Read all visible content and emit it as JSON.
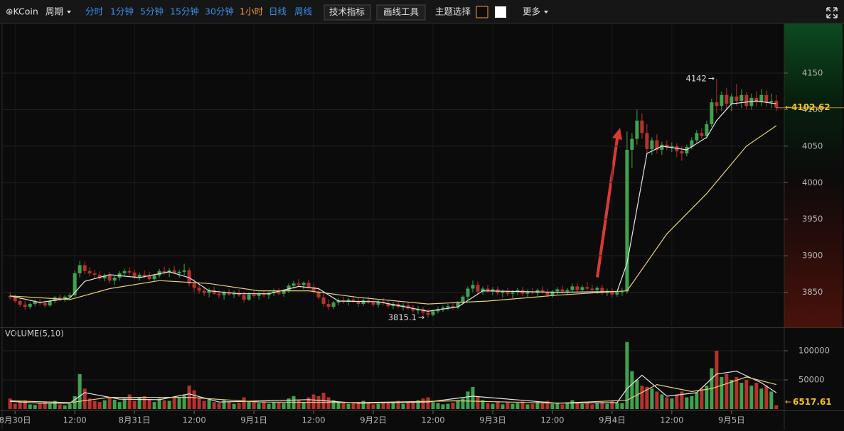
{
  "toolbar": {
    "logo": "⊛KCoin",
    "period": "周期",
    "intervals": [
      "分时",
      "1分钟",
      "5分钟",
      "15分钟",
      "30分钟",
      "1小时",
      "日线",
      "周线"
    ],
    "active_interval": 5,
    "buttons": [
      "技术指标",
      "画线工具"
    ],
    "theme": "主题选择",
    "more": "更多"
  },
  "chart_data": {
    "type": "candlestick",
    "xlim": [
      -1.6,
      155.6
    ],
    "ylim": [
      3802,
      4218
    ],
    "yticks": [
      3850,
      3900,
      3950,
      4000,
      4050,
      4100,
      4150
    ],
    "grid": true,
    "colors": {
      "up": "#3fa34d",
      "down": "#b7322c"
    },
    "xticks": [
      {
        "value": 1,
        "label": "8月30日"
      },
      {
        "value": 13,
        "label": "12:00"
      },
      {
        "value": 25,
        "label": "8月31日"
      },
      {
        "value": 37,
        "label": "12:00"
      },
      {
        "value": 49,
        "label": "9月1日"
      },
      {
        "value": 61,
        "label": "12:00"
      },
      {
        "value": 73,
        "label": "9月2日"
      },
      {
        "value": 85,
        "label": "12:00"
      },
      {
        "value": 97,
        "label": "9月3日"
      },
      {
        "value": 109,
        "label": "12:00"
      },
      {
        "value": 121,
        "label": "9月4日"
      },
      {
        "value": 133,
        "label": "12:00"
      },
      {
        "value": 145,
        "label": "9月5日"
      }
    ],
    "candles": [
      [
        3845,
        3850,
        3840,
        3843
      ],
      [
        3843,
        3847,
        3835,
        3838
      ],
      [
        3838,
        3842,
        3830,
        3833
      ],
      [
        3833,
        3838,
        3826,
        3830
      ],
      [
        3830,
        3836,
        3827,
        3834
      ],
      [
        3834,
        3840,
        3831,
        3837
      ],
      [
        3837,
        3841,
        3832,
        3835
      ],
      [
        3835,
        3839,
        3829,
        3832
      ],
      [
        3832,
        3840,
        3830,
        3838
      ],
      [
        3838,
        3845,
        3835,
        3843
      ],
      [
        3843,
        3847,
        3838,
        3840
      ],
      [
        3840,
        3846,
        3837,
        3844
      ],
      [
        3844,
        3849,
        3840,
        3846
      ],
      [
        3846,
        3880,
        3844,
        3876
      ],
      [
        3876,
        3893,
        3870,
        3887
      ],
      [
        3887,
        3892,
        3875,
        3879
      ],
      [
        3879,
        3884,
        3872,
        3876
      ],
      [
        3876,
        3881,
        3870,
        3874
      ],
      [
        3874,
        3879,
        3866,
        3869
      ],
      [
        3869,
        3876,
        3865,
        3873
      ],
      [
        3873,
        3878,
        3862,
        3866
      ],
      [
        3866,
        3872,
        3860,
        3870
      ],
      [
        3870,
        3879,
        3866,
        3876
      ],
      [
        3876,
        3882,
        3872,
        3879
      ],
      [
        3879,
        3884,
        3873,
        3877
      ],
      [
        3877,
        3881,
        3868,
        3871
      ],
      [
        3871,
        3877,
        3866,
        3874
      ],
      [
        3874,
        3880,
        3869,
        3872
      ],
      [
        3872,
        3878,
        3866,
        3868
      ],
      [
        3868,
        3875,
        3864,
        3873
      ],
      [
        3873,
        3882,
        3870,
        3879
      ],
      [
        3879,
        3885,
        3874,
        3877
      ],
      [
        3877,
        3883,
        3871,
        3880
      ],
      [
        3880,
        3886,
        3875,
        3876
      ],
      [
        3876,
        3881,
        3870,
        3878
      ],
      [
        3878,
        3889,
        3874,
        3880
      ],
      [
        3880,
        3884,
        3858,
        3862
      ],
      [
        3862,
        3868,
        3850,
        3856
      ],
      [
        3856,
        3862,
        3848,
        3852
      ],
      [
        3852,
        3858,
        3845,
        3849
      ],
      [
        3849,
        3856,
        3843,
        3853
      ],
      [
        3853,
        3858,
        3846,
        3848
      ],
      [
        3848,
        3853,
        3842,
        3846
      ],
      [
        3846,
        3852,
        3840,
        3850
      ],
      [
        3850,
        3855,
        3845,
        3847
      ],
      [
        3847,
        3852,
        3842,
        3849
      ],
      [
        3849,
        3854,
        3844,
        3846
      ],
      [
        3846,
        3851,
        3836,
        3840
      ],
      [
        3840,
        3850,
        3838,
        3847
      ],
      [
        3847,
        3852,
        3842,
        3845
      ],
      [
        3845,
        3850,
        3840,
        3848
      ],
      [
        3848,
        3853,
        3843,
        3846
      ],
      [
        3846,
        3851,
        3841,
        3849
      ],
      [
        3849,
        3855,
        3845,
        3851
      ],
      [
        3851,
        3856,
        3846,
        3848
      ],
      [
        3848,
        3854,
        3844,
        3852
      ],
      [
        3852,
        3862,
        3849,
        3859
      ],
      [
        3859,
        3866,
        3855,
        3862
      ],
      [
        3862,
        3868,
        3857,
        3860
      ],
      [
        3860,
        3865,
        3854,
        3863
      ],
      [
        3863,
        3867,
        3855,
        3857
      ],
      [
        3857,
        3862,
        3848,
        3851
      ],
      [
        3851,
        3856,
        3840,
        3843
      ],
      [
        3843,
        3848,
        3830,
        3834
      ],
      [
        3834,
        3840,
        3826,
        3830
      ],
      [
        3830,
        3838,
        3827,
        3836
      ],
      [
        3836,
        3842,
        3832,
        3839
      ],
      [
        3839,
        3844,
        3834,
        3837
      ],
      [
        3837,
        3842,
        3832,
        3840
      ],
      [
        3840,
        3845,
        3835,
        3838
      ],
      [
        3838,
        3843,
        3830,
        3834
      ],
      [
        3834,
        3842,
        3831,
        3839
      ],
      [
        3839,
        3844,
        3834,
        3836
      ],
      [
        3836,
        3841,
        3830,
        3833
      ],
      [
        3833,
        3839,
        3829,
        3837
      ],
      [
        3837,
        3842,
        3832,
        3835
      ],
      [
        3835,
        3840,
        3829,
        3831
      ],
      [
        3831,
        3837,
        3827,
        3834
      ],
      [
        3834,
        3838,
        3828,
        3830
      ],
      [
        3830,
        3835,
        3825,
        3832
      ],
      [
        3832,
        3836,
        3826,
        3828
      ],
      [
        3828,
        3833,
        3822,
        3825
      ],
      [
        3825,
        3831,
        3820,
        3827
      ],
      [
        3827,
        3830,
        3818,
        3822
      ],
      [
        3822,
        3827,
        3815.1,
        3819
      ],
      [
        3819,
        3826,
        3817,
        3824
      ],
      [
        3824,
        3830,
        3821,
        3827
      ],
      [
        3827,
        3832,
        3823,
        3829
      ],
      [
        3829,
        3834,
        3825,
        3831
      ],
      [
        3831,
        3836,
        3826,
        3829
      ],
      [
        3829,
        3838,
        3827,
        3836
      ],
      [
        3836,
        3846,
        3833,
        3844
      ],
      [
        3844,
        3858,
        3840,
        3855
      ],
      [
        3855,
        3866,
        3850,
        3860
      ],
      [
        3860,
        3865,
        3848,
        3851
      ],
      [
        3851,
        3858,
        3847,
        3855
      ],
      [
        3855,
        3860,
        3849,
        3852
      ],
      [
        3852,
        3857,
        3846,
        3854
      ],
      [
        3854,
        3858,
        3846,
        3849
      ],
      [
        3849,
        3854,
        3843,
        3851
      ],
      [
        3851,
        3856,
        3845,
        3848
      ],
      [
        3848,
        3853,
        3842,
        3850
      ],
      [
        3850,
        3856,
        3846,
        3853
      ],
      [
        3853,
        3857,
        3845,
        3848
      ],
      [
        3848,
        3854,
        3844,
        3851
      ],
      [
        3851,
        3856,
        3847,
        3849
      ],
      [
        3849,
        3855,
        3845,
        3853
      ],
      [
        3853,
        3858,
        3848,
        3850
      ],
      [
        3850,
        3855,
        3843,
        3846
      ],
      [
        3846,
        3853,
        3843,
        3851
      ],
      [
        3851,
        3857,
        3847,
        3854
      ],
      [
        3854,
        3859,
        3849,
        3851
      ],
      [
        3851,
        3856,
        3846,
        3853
      ],
      [
        3853,
        3862,
        3850,
        3858
      ],
      [
        3858,
        3862,
        3850,
        3853
      ],
      [
        3853,
        3860,
        3850,
        3857
      ],
      [
        3857,
        3864,
        3852,
        3855
      ],
      [
        3855,
        3860,
        3850,
        3853
      ],
      [
        3853,
        3858,
        3848,
        3856
      ],
      [
        3856,
        3860,
        3846,
        3849
      ],
      [
        3849,
        3855,
        3845,
        3852
      ],
      [
        3852,
        3856,
        3843,
        3847
      ],
      [
        3847,
        3852,
        3844,
        3850
      ],
      [
        3850,
        3856,
        3845,
        3851
      ],
      [
        3851,
        4070,
        3848,
        4045
      ],
      [
        4045,
        4068,
        4020,
        4060
      ],
      [
        4060,
        4100,
        4052,
        4085
      ],
      [
        4085,
        4095,
        4060,
        4068
      ],
      [
        4068,
        4080,
        4040,
        4046
      ],
      [
        4046,
        4062,
        4038,
        4058
      ],
      [
        4058,
        4066,
        4040,
        4045
      ],
      [
        4045,
        4056,
        4038,
        4052
      ],
      [
        4052,
        4058,
        4044,
        4048
      ],
      [
        4048,
        4055,
        4042,
        4050
      ],
      [
        4050,
        4054,
        4035,
        4043
      ],
      [
        4043,
        4050,
        4030,
        4040
      ],
      [
        4040,
        4052,
        4036,
        4049
      ],
      [
        4049,
        4062,
        4046,
        4058
      ],
      [
        4058,
        4072,
        4055,
        4068
      ],
      [
        4068,
        4075,
        4060,
        4064
      ],
      [
        4064,
        4085,
        4060,
        4080
      ],
      [
        4080,
        4115,
        4076,
        4110
      ],
      [
        4110,
        4142,
        4095,
        4105
      ],
      [
        4105,
        4125,
        4098,
        4120
      ],
      [
        4120,
        4130,
        4100,
        4108
      ],
      [
        4108,
        4122,
        4098,
        4118
      ],
      [
        4118,
        4135,
        4105,
        4112
      ],
      [
        4112,
        4128,
        4102,
        4120
      ],
      [
        4120,
        4124,
        4100,
        4105
      ],
      [
        4105,
        4122,
        4100,
        4116
      ],
      [
        4116,
        4125,
        4104,
        4110
      ],
      [
        4110,
        4128,
        4105,
        4120
      ],
      [
        4120,
        4126,
        4104,
        4110
      ],
      [
        4110,
        4122,
        4102,
        4112
      ],
      [
        4112,
        4120,
        4098,
        4102.62
      ]
    ],
    "ma": [
      {
        "color": "#e6e6e6",
        "x": [
          0,
          6,
          12,
          15,
          20,
          26,
          32,
          36,
          40,
          46,
          52,
          58,
          62,
          66,
          74,
          84,
          90,
          95,
          110,
          122,
          124,
          128,
          131,
          136,
          140,
          142,
          145,
          150,
          154
        ],
        "values": [
          3845,
          3836,
          3842,
          3865,
          3874,
          3870,
          3878,
          3870,
          3852,
          3848,
          3848,
          3858,
          3855,
          3838,
          3837,
          3824,
          3830,
          3852,
          3850,
          3851,
          3890,
          4040,
          4050,
          4045,
          4062,
          4085,
          4108,
          4112,
          4108
        ]
      },
      {
        "color": "#e8d27a",
        "x": [
          0,
          12,
          20,
          30,
          40,
          50,
          60,
          70,
          84,
          96,
          110,
          124,
          132,
          140,
          148,
          154
        ],
        "values": [
          3845,
          3840,
          3855,
          3866,
          3862,
          3852,
          3852,
          3843,
          3834,
          3838,
          3846,
          3852,
          3930,
          3985,
          4050,
          4078
        ]
      }
    ],
    "volume": {
      "label": "VOLUME(5,10)",
      "ylim": [
        0,
        139000
      ],
      "yticks": [
        50000,
        100000
      ],
      "values": [
        18000,
        9000,
        12000,
        15000,
        8000,
        7000,
        10000,
        12000,
        9000,
        14000,
        8000,
        6000,
        9000,
        22000,
        60000,
        35000,
        18000,
        14000,
        12000,
        15000,
        20000,
        16000,
        12000,
        18000,
        25000,
        14000,
        20000,
        22000,
        16000,
        12000,
        18000,
        15000,
        14000,
        20000,
        19000,
        25000,
        40000,
        32000,
        20000,
        14000,
        16000,
        12000,
        10000,
        15000,
        13000,
        9000,
        11000,
        20000,
        14000,
        12000,
        10000,
        13000,
        9000,
        11000,
        12000,
        10000,
        18000,
        22000,
        15000,
        12000,
        20000,
        25000,
        22000,
        28000,
        20000,
        15000,
        12000,
        10000,
        9000,
        11000,
        12000,
        14000,
        10000,
        8000,
        9000,
        11000,
        10000,
        12000,
        14000,
        9000,
        11000,
        13000,
        15000,
        18000,
        20000,
        12000,
        10000,
        8000,
        9000,
        11000,
        15000,
        18000,
        30000,
        38000,
        22000,
        15000,
        10000,
        9000,
        12000,
        8000,
        11000,
        9000,
        10000,
        13000,
        8000,
        9000,
        12000,
        10000,
        14000,
        9000,
        11000,
        8000,
        10000,
        15000,
        12000,
        9000,
        11000,
        8000,
        10000,
        12000,
        9000,
        14000,
        11000,
        10000,
        115000,
        65000,
        50000,
        40000,
        38000,
        35000,
        30000,
        25000,
        20000,
        18000,
        25000,
        30000,
        20000,
        22000,
        28000,
        35000,
        40000,
        70000,
        100000,
        55000,
        60000,
        50000,
        55000,
        45000,
        50000,
        40000,
        45000,
        35000,
        40000,
        30000,
        6517.61
      ],
      "ma": [
        {
          "color": "#e6e6e6",
          "x": [
            0,
            6,
            12,
            15,
            22,
            30,
            36,
            42,
            60,
            70,
            84,
            93,
            110,
            122,
            124,
            127,
            132,
            138,
            142,
            146,
            151,
            154
          ],
          "values": [
            13000,
            10000,
            10000,
            28000,
            17000,
            16000,
            26000,
            12000,
            16000,
            10000,
            12000,
            22000,
            10000,
            11000,
            35000,
            58000,
            22000,
            28000,
            60000,
            65000,
            45000,
            28000
          ]
        },
        {
          "color": "#e8d27a",
          "x": [
            0,
            12,
            20,
            36,
            50,
            70,
            90,
            110,
            124,
            130,
            137,
            141,
            148,
            154
          ],
          "values": [
            14000,
            11000,
            20000,
            20000,
            12000,
            11000,
            14000,
            10000,
            15000,
            42000,
            30000,
            35000,
            55000,
            42000
          ]
        }
      ]
    }
  }
}
